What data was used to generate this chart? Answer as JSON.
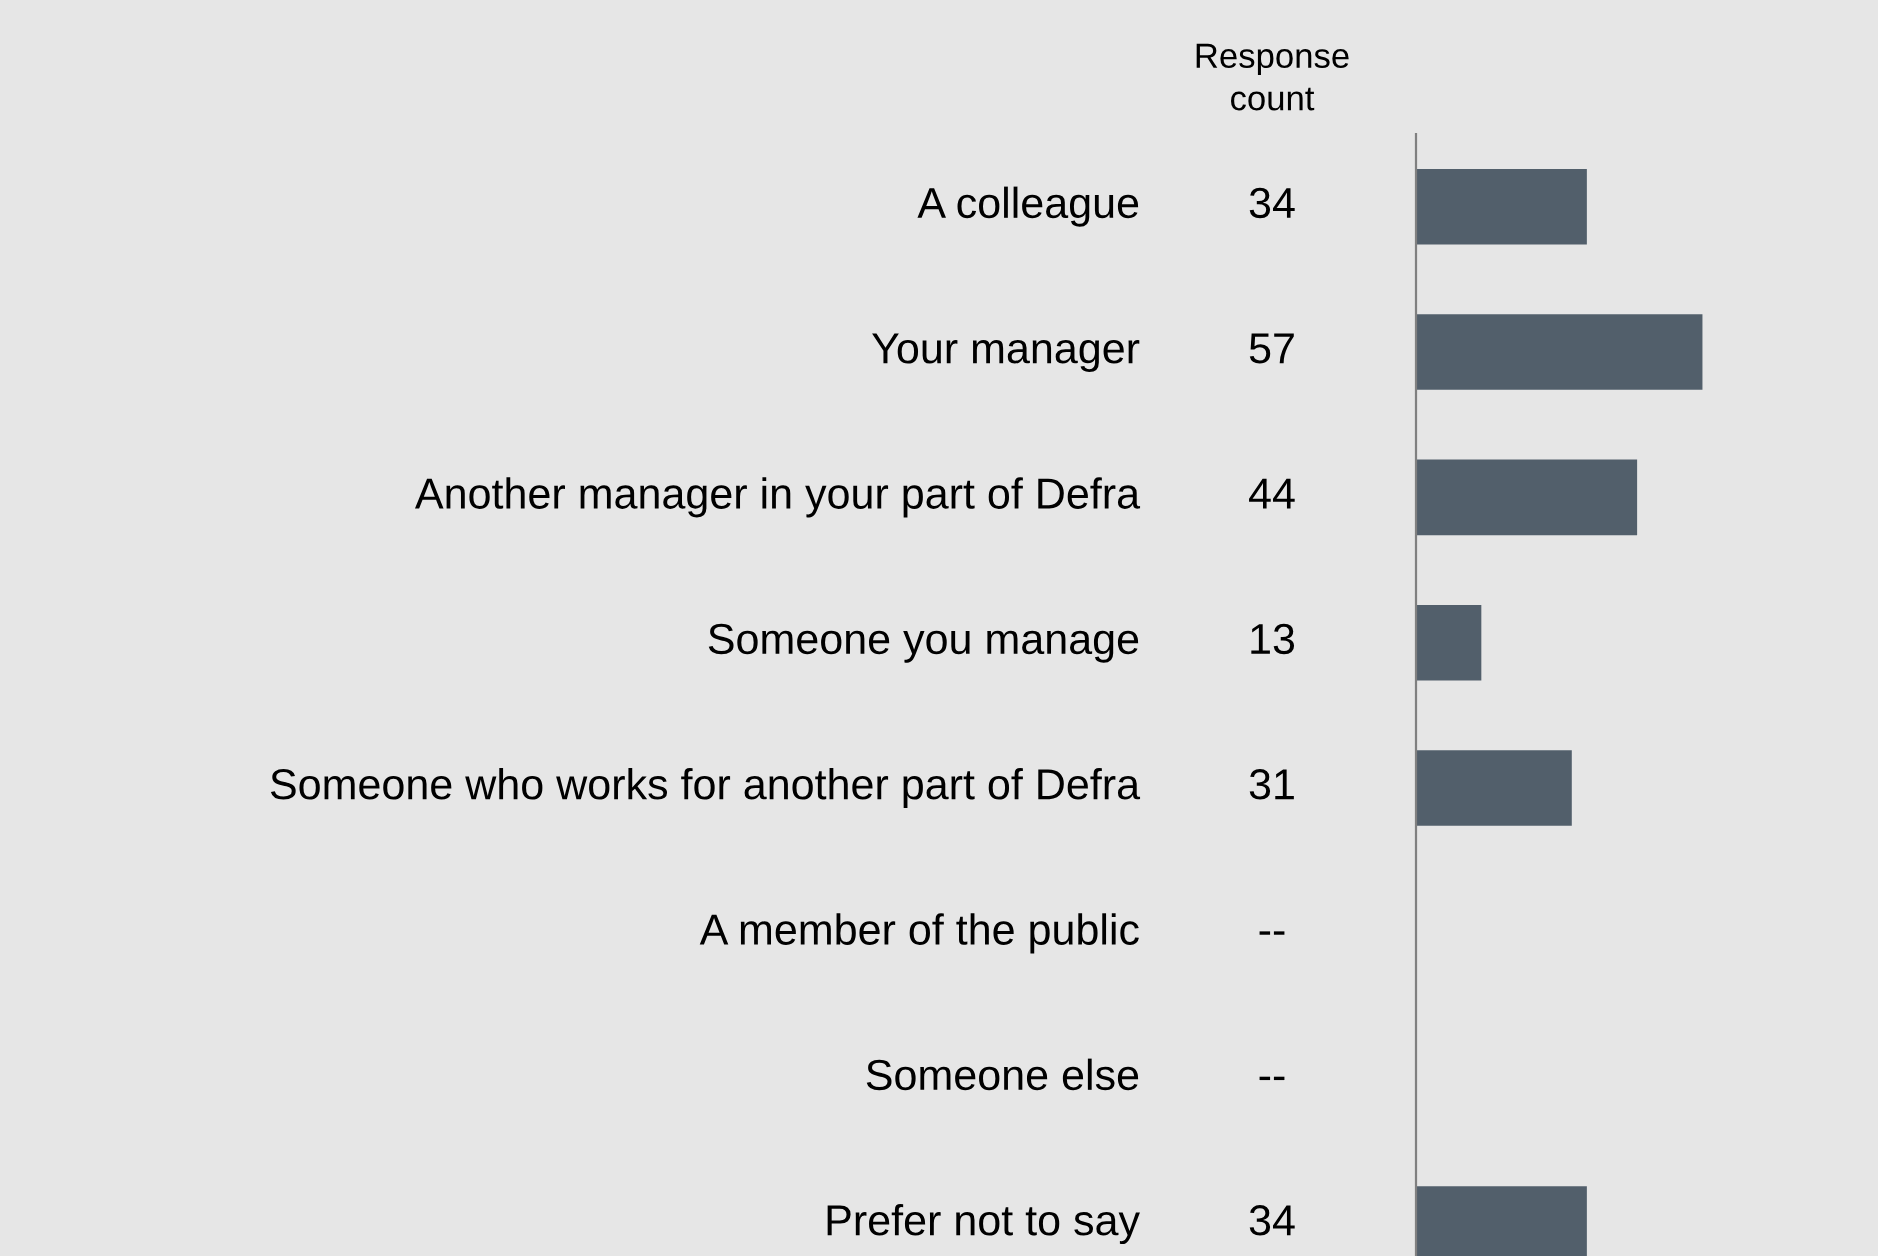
{
  "chart_data": {
    "type": "bar",
    "orientation": "horizontal",
    "categories": [
      "A colleague",
      "Your manager",
      "Another manager in your part of Defra",
      "Someone you manage",
      "Someone who works for another part of Defra",
      "A member of the public",
      "Someone else",
      "Prefer not to say"
    ],
    "values": [
      34,
      57,
      44,
      13,
      31,
      null,
      null,
      34
    ],
    "value_labels": [
      "34",
      "57",
      "44",
      "13",
      "31",
      "--",
      "--",
      "34"
    ],
    "color": "#525f6b",
    "annotations": [
      "Response\ncount"
    ]
  }
}
